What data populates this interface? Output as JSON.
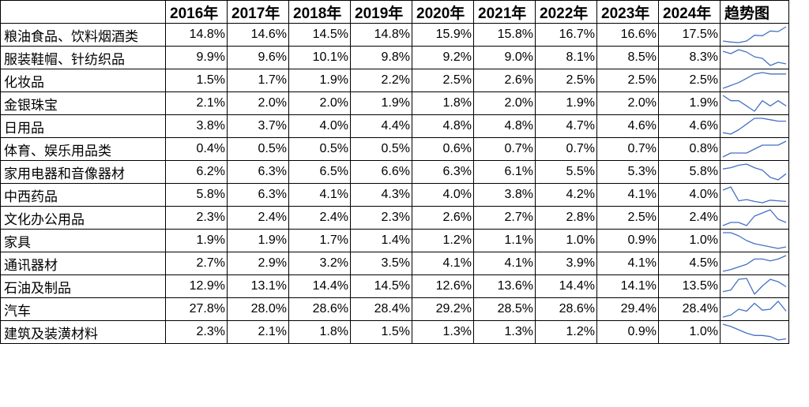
{
  "table": {
    "headers": [
      "",
      "2016年",
      "2017年",
      "2018年",
      "2019年",
      "2020年",
      "2021年",
      "2022年",
      "2023年",
      "2024年",
      "趋势图"
    ]
  },
  "chart_data": {
    "type": "table",
    "columns": [
      "2016年",
      "2017年",
      "2018年",
      "2019年",
      "2020年",
      "2021年",
      "2022年",
      "2023年",
      "2024年"
    ],
    "trend_column": "趋势图",
    "line_color": "#4472c4",
    "rows": [
      {
        "category": "粮油食品、饮料烟酒类",
        "values": [
          14.8,
          14.6,
          14.5,
          14.8,
          15.9,
          15.8,
          16.7,
          16.6,
          17.5
        ]
      },
      {
        "category": "服装鞋帽、针纺织品",
        "values": [
          9.9,
          9.6,
          10.1,
          9.8,
          9.2,
          9.0,
          8.1,
          8.5,
          8.3
        ]
      },
      {
        "category": "化妆品",
        "values": [
          1.5,
          1.7,
          1.9,
          2.2,
          2.5,
          2.6,
          2.5,
          2.5,
          2.5
        ]
      },
      {
        "category": "金银珠宝",
        "values": [
          2.1,
          2.0,
          2.0,
          1.9,
          1.8,
          2.0,
          1.9,
          2.0,
          1.9
        ]
      },
      {
        "category": "日用品",
        "values": [
          3.8,
          3.7,
          4.0,
          4.4,
          4.8,
          4.8,
          4.7,
          4.6,
          4.6
        ]
      },
      {
        "category": "体育、娱乐用品类",
        "values": [
          0.4,
          0.5,
          0.5,
          0.5,
          0.6,
          0.7,
          0.7,
          0.7,
          0.8
        ]
      },
      {
        "category": "家用电器和音像器材",
        "values": [
          6.2,
          6.3,
          6.5,
          6.6,
          6.3,
          6.1,
          5.5,
          5.3,
          5.8
        ]
      },
      {
        "category": "中西药品",
        "values": [
          5.8,
          6.3,
          4.1,
          4.3,
          4.0,
          3.8,
          4.2,
          4.1,
          4.0
        ]
      },
      {
        "category": "文化办公用品",
        "values": [
          2.3,
          2.4,
          2.4,
          2.3,
          2.6,
          2.7,
          2.8,
          2.5,
          2.4
        ]
      },
      {
        "category": "家具",
        "values": [
          1.9,
          1.9,
          1.7,
          1.4,
          1.2,
          1.1,
          1.0,
          0.9,
          1.0
        ]
      },
      {
        "category": "通讯器材",
        "values": [
          2.7,
          2.9,
          3.2,
          3.5,
          4.1,
          4.1,
          3.9,
          4.1,
          4.5
        ]
      },
      {
        "category": "石油及制品",
        "values": [
          12.9,
          13.1,
          14.4,
          14.5,
          12.6,
          13.6,
          14.4,
          14.1,
          13.5
        ]
      },
      {
        "category": "汽车",
        "values": [
          27.8,
          28.0,
          28.6,
          28.4,
          29.2,
          28.5,
          28.6,
          29.4,
          28.4
        ]
      },
      {
        "category": "建筑及装潢材料",
        "values": [
          2.3,
          2.1,
          1.8,
          1.5,
          1.3,
          1.3,
          1.2,
          0.9,
          1.0
        ]
      }
    ]
  }
}
